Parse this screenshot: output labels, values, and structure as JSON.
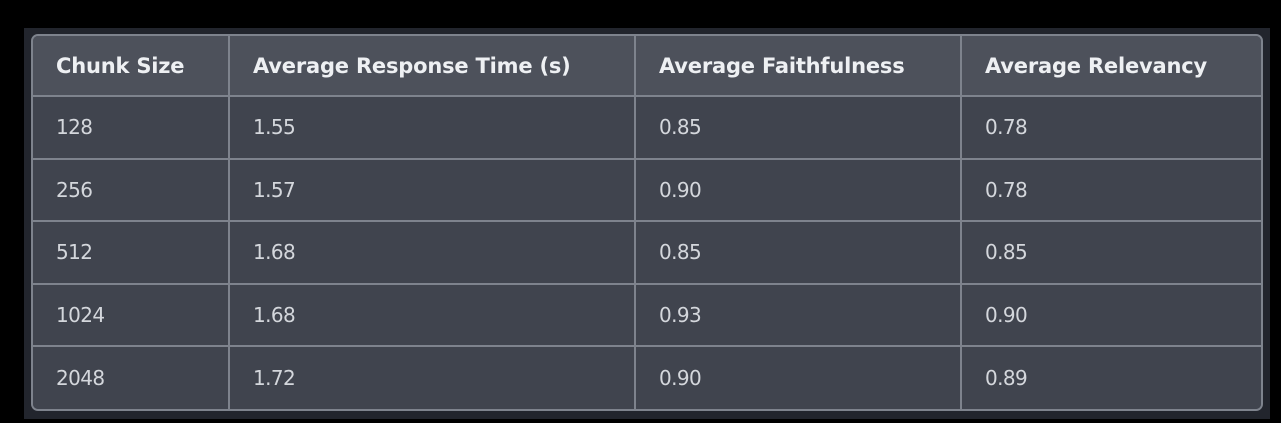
{
  "chart_data": {
    "type": "table",
    "columns": [
      "Chunk Size",
      "Average Response Time (s)",
      "Average Faithfulness",
      "Average Relevancy"
    ],
    "rows": [
      [
        "128",
        "1.55",
        "0.85",
        "0.78"
      ],
      [
        "256",
        "1.57",
        "0.90",
        "0.78"
      ],
      [
        "512",
        "1.68",
        "0.85",
        "0.85"
      ],
      [
        "1024",
        "1.68",
        "0.93",
        "0.90"
      ],
      [
        "2048",
        "1.72",
        "0.90",
        "0.89"
      ]
    ]
  },
  "colors": {
    "background": "#000000",
    "panel": "#22252d",
    "header_bg": "#4d515b",
    "cell_bg": "#40444e",
    "border": "#7e838d",
    "header_text": "#eef0f3",
    "cell_text": "#d4d7dc"
  }
}
